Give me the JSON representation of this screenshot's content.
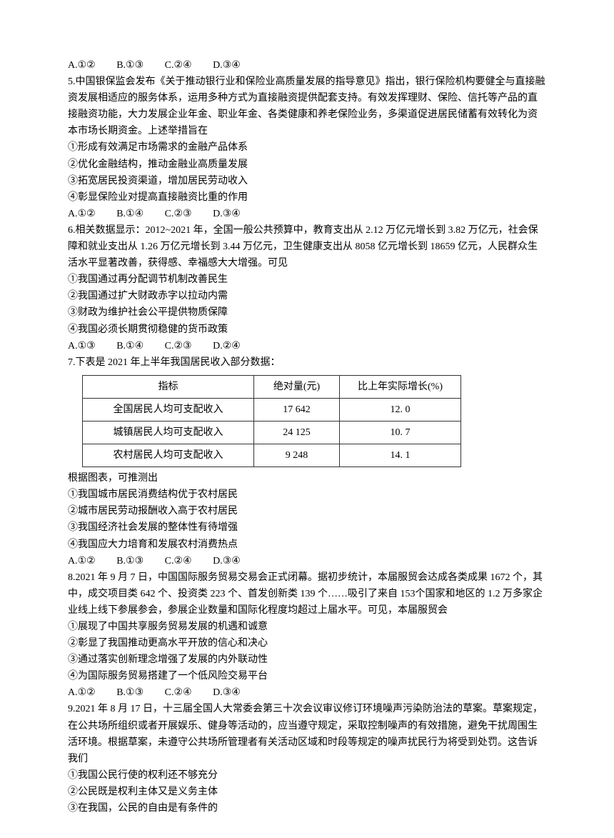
{
  "q4_tail": {
    "options": {
      "A": "A.①②",
      "B": "B.①③",
      "C": "C.②④",
      "D": "D.③④"
    }
  },
  "q5": {
    "stem": "5.中国银保监会发布《关于推动银行业和保险业高质量发展的指导意见》指出，银行保险机构要健全与直接融资发展相适应的服务体系，运用多种方式为直接融资提供配套支持。有效发挥理财、保险、信托等产品的直接融资功能，大力发展企业年金、职业年金、各类健康和养老保险业务，多渠道促进居民储蓄有效转化为资本市场长期资金。上述举措旨在",
    "s1": "①形成有效满足市场需求的金融产品体系",
    "s2": "②优化金融结构，推动金融业高质量发展",
    "s3": "③拓宽居民投资渠道，增加居民劳动收入",
    "s4": "④彰显保险业对提高直接融资比重的作用",
    "options": {
      "A": "A.①②",
      "B": "B.①④",
      "C": "C.②③",
      "D": "D.③④"
    }
  },
  "q6": {
    "stem": "6.相关数据显示：2012~2021 年，全国一般公共预算中，教育支出从 2.12 万亿元增长到 3.82 万亿元，社会保障和就业支出从 1.26 万亿元增长到 3.44 万亿元，卫生健康支出从 8058 亿元增长到 18659 亿元，人民群众生活水平显著改善，获得感、幸福感大大增强。可见",
    "s1": "①我国通过再分配调节机制改善民生",
    "s2": "②我国通过扩大财政赤字以拉动内需",
    "s3": "③财政为维护社会公平提供物质保障",
    "s4": "④我国必须长期贯彻稳健的货币政策",
    "options": {
      "A": "A.①③",
      "B": "B.①④",
      "C": "C.②③",
      "D": "D.②④"
    }
  },
  "q7": {
    "stem": "7.下表是 2021 年上半年我国居民收入部分数据：",
    "table": {
      "headers": {
        "c1": "指标",
        "c2": "绝对量(元)",
        "c3": "比上年实际增长(%)"
      },
      "rows": [
        {
          "c1": "全国居民人均可支配收入",
          "c2": "17 642",
          "c3": "12. 0"
        },
        {
          "c1": "城镇居民人均可支配收入",
          "c2": "24 125",
          "c3": "10. 7"
        },
        {
          "c1": "农村居民人均可支配收入",
          "c2": "9 248",
          "c3": "14. 1"
        }
      ]
    },
    "post": "根据图表，可推测出",
    "s1": "①我国城市居民消费结构优于农村居民",
    "s2": "②城市居民劳动报酬收入高于农村居民",
    "s3": "③我国经济社会发展的整体性有待增强",
    "s4": "④我国应大力培育和发展农村消费热点",
    "options": {
      "A": "A.①②",
      "B": "B.①③",
      "C": "C.②④",
      "D": "D.③④"
    }
  },
  "q8": {
    "stem": "8.2021 年 9 月 7 日，中国国际服务贸易交易会正式闭幕。据初步统计，本届服贸会达成各类成果 1672 个，其中，成交项目类 642 个、投资类 223 个、首发创新类 139 个……吸引了来自 153个国家和地区的 1.2 万多家企业线上线下参展参会，参展企业数量和国际化程度均超过上届水平。可见，本届服贸会",
    "s1": "①展现了中国共享服务贸易发展的机遇和诚意",
    "s2": "②彰显了我国推动更高水平开放的信心和决心",
    "s3": "③通过落实创新理念增强了发展的内外联动性",
    "s4": "④为国际服务贸易搭建了一个低风险交易平台",
    "options": {
      "A": "A.①②",
      "B": "B.①③",
      "C": "C.②④",
      "D": "D.③④"
    }
  },
  "q9": {
    "stem": "9.2021 年 8 月 17 日，十三届全国人大常委会第三十次会议审议修订环境噪声污染防治法的草案。草案规定，在公共场所组织或者开展娱乐、健身等活动的，应当遵守规定，采取控制噪声的有效措施，避免干扰周围生活环境。根据草案，未遵守公共场所管理者有关活动区域和时段等规定的噪声扰民行为将受到处罚。这告诉我们",
    "s1": "①我国公民行使的权利还不够充分",
    "s2": "②公民既是权利主体又是义务主体",
    "s3": "③在我国，公民的自由是有条件的"
  }
}
